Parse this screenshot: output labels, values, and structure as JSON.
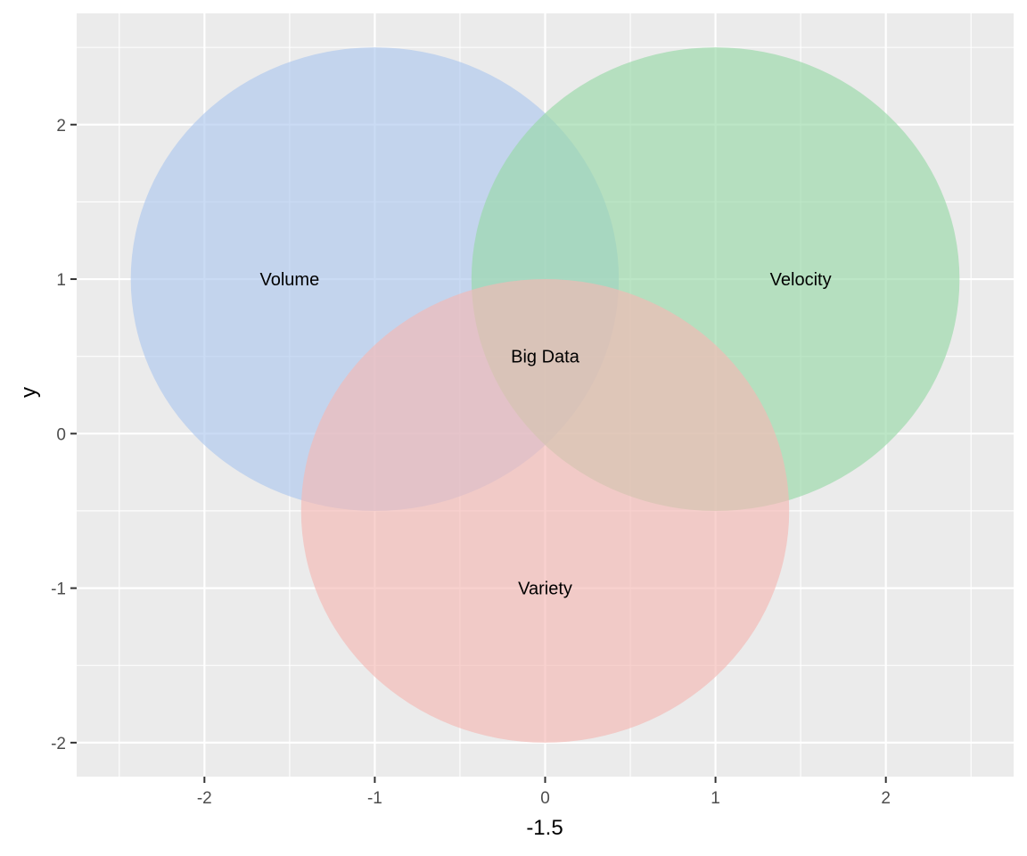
{
  "chart_data": {
    "type": "venn",
    "xlabel": "-1.5",
    "ylabel": "y",
    "xlim": [
      -2.75,
      2.75
    ],
    "ylim": [
      -2.22,
      2.72
    ],
    "x_ticks": [
      -2,
      -1,
      0,
      1,
      2
    ],
    "y_ticks": [
      -2,
      -1,
      0,
      1,
      2
    ],
    "grid": true,
    "panel_color": "#ebebeb",
    "circles": [
      {
        "label": "Volume",
        "cx": -1,
        "cy": 1,
        "rx": 1.5,
        "ry": 1.5,
        "color": "#aec7ee",
        "label_x": -1.5,
        "label_y": 1
      },
      {
        "label": "Velocity",
        "cx": 1,
        "cy": 1,
        "rx": 1.5,
        "ry": 1.5,
        "color": "#98d8a8",
        "label_x": 1.5,
        "label_y": 1
      },
      {
        "label": "Variety",
        "cx": 0,
        "cy": -0.5,
        "rx": 1.5,
        "ry": 1.5,
        "color": "#f4b8b4",
        "label_x": 0,
        "label_y": -1
      }
    ],
    "center_label": {
      "text": "Big Data",
      "x": 0,
      "y": 0.5
    }
  }
}
